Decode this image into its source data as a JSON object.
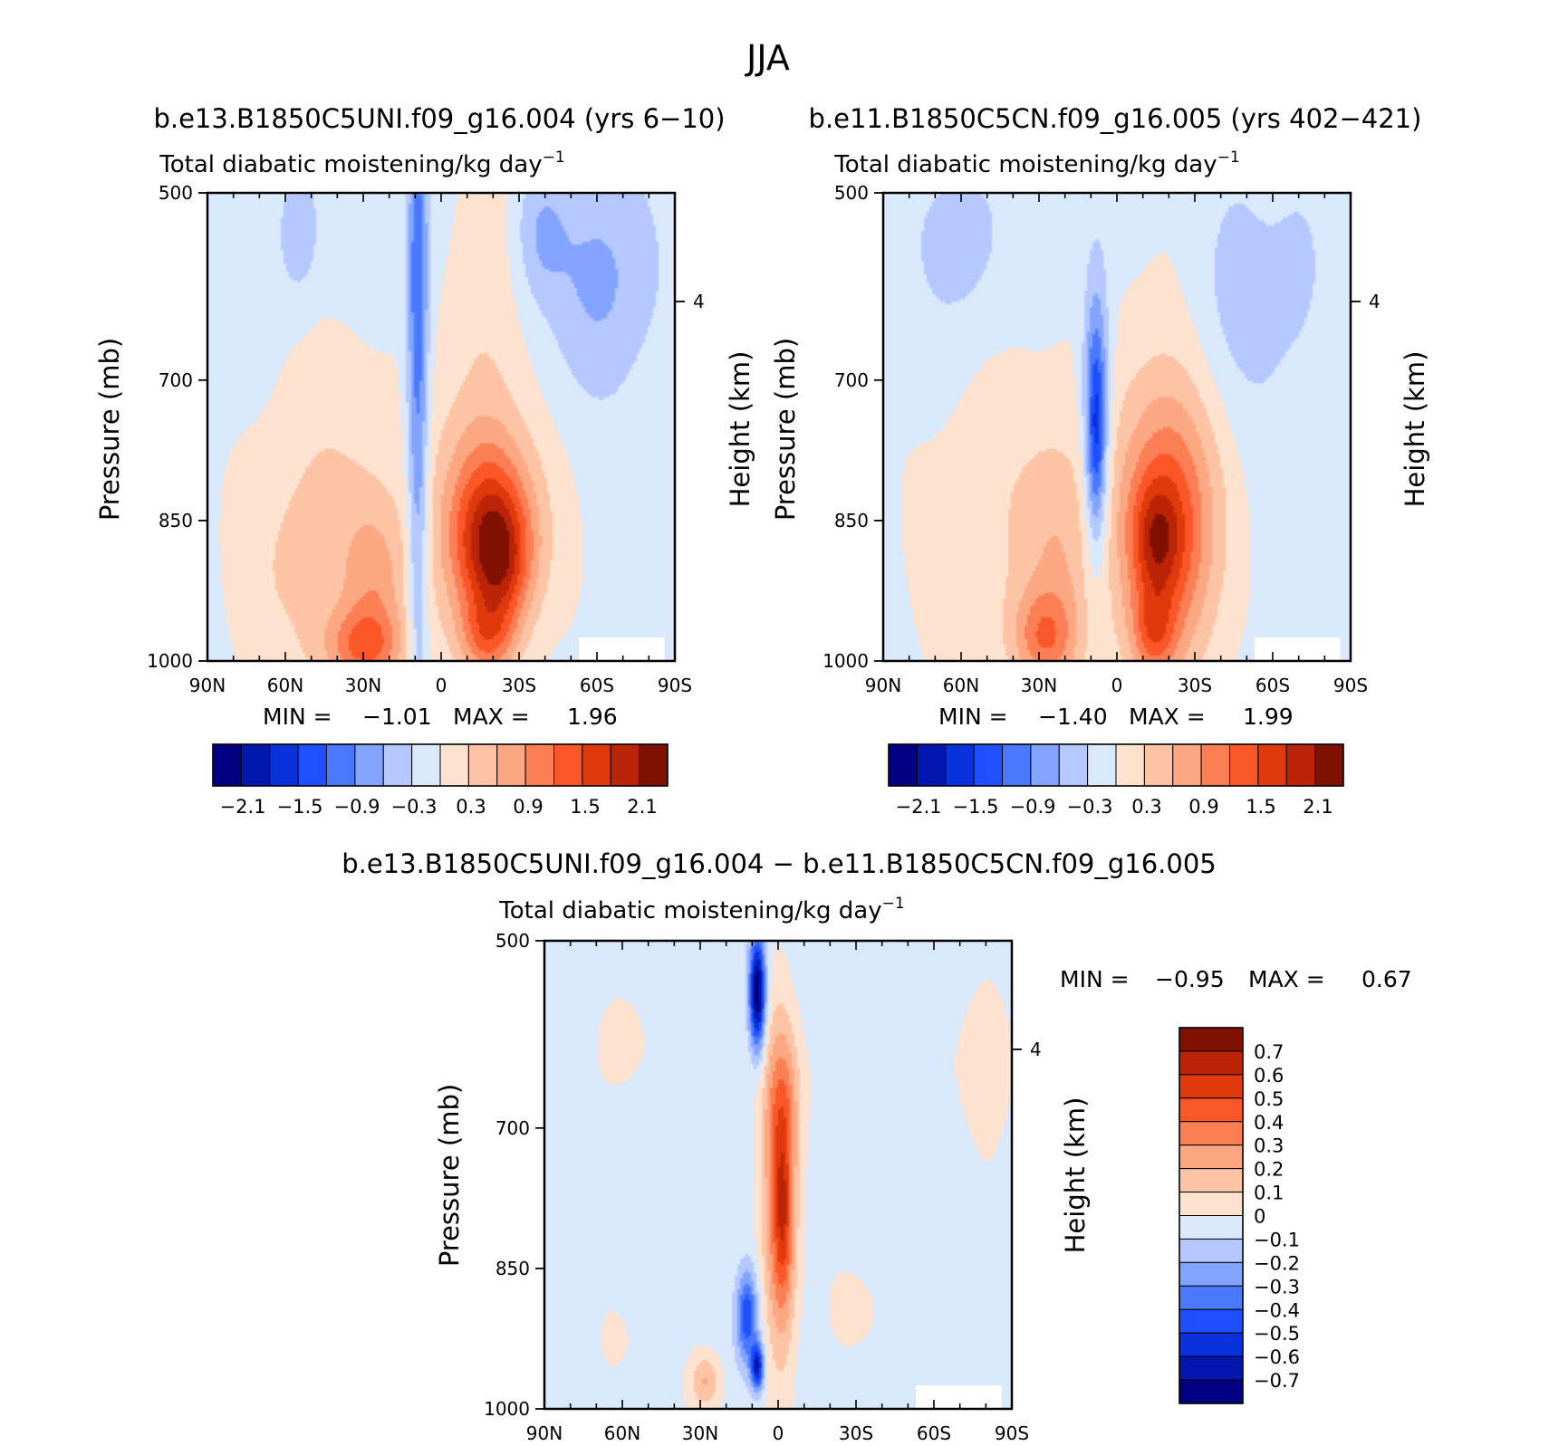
{
  "title": "JJA",
  "chart_data": [
    {
      "type": "heatmap",
      "title": "b.e13.B1850C5UNI.f09_g16.004 (yrs 6−10)",
      "subtitle": "Total diabatic moistening/kg day",
      "subtitle_exp": "−1",
      "ylabel": "Pressure (mb)",
      "y2label": "Height (km)",
      "x_ticks": [
        "90N",
        "60N",
        "30N",
        "0",
        "30S",
        "60S",
        "90S"
      ],
      "x_values": [
        90,
        60,
        30,
        0,
        -30,
        -60,
        -90
      ],
      "y_ticks": [
        "500",
        "700",
        "850",
        "1000"
      ],
      "y_values": [
        500,
        700,
        850,
        1000
      ],
      "y2_ticks": [
        "4"
      ],
      "y2_pressure": [
        616
      ],
      "ylim": [
        1000,
        500
      ],
      "min_label": "MIN =",
      "min": "−1.01",
      "max_label": "MAX =",
      "max": "1.96",
      "colorbar_labels": [
        "−2.1",
        "−1.5",
        "−0.9",
        "−0.3",
        "0.3",
        "0.9",
        "1.5",
        "2.1"
      ],
      "blobs": [
        {
          "lat": 38,
          "p": 845,
          "rlat": 30,
          "rp": 210,
          "v": 0.34
        },
        {
          "lat": 58,
          "p": 900,
          "rlat": 24,
          "rp": 140,
          "v": 0.3
        },
        {
          "lat": 25,
          "p": 920,
          "rlat": 12,
          "rp": 90,
          "v": 0.6
        },
        {
          "lat": 30,
          "p": 985,
          "rlat": 15,
          "rp": 40,
          "v": 0.95
        },
        {
          "lat": -16,
          "p": 655,
          "rlat": 15,
          "rp": 220,
          "v": 0.35
        },
        {
          "lat": -22,
          "p": 860,
          "rlat": 30,
          "rp": 130,
          "v": 0.3
        },
        {
          "lat": -18,
          "p": 870,
          "rlat": 18,
          "rp": 120,
          "v": 0.9
        },
        {
          "lat": -20,
          "p": 870,
          "rlat": 14,
          "rp": 80,
          "v": 0.9
        },
        {
          "lat": -24,
          "p": 900,
          "rlat": 10,
          "rp": 60,
          "v": 0.55
        },
        {
          "lat": -18,
          "p": 975,
          "rlat": 10,
          "rp": 40,
          "v": 0.8
        },
        {
          "lat": 9,
          "p": 745,
          "rlat": 4,
          "rp": 330,
          "v": -0.95
        },
        {
          "lat": 9,
          "p": 560,
          "rlat": 4,
          "rp": 120,
          "v": -0.4
        },
        {
          "lat": 55,
          "p": 545,
          "rlat": 8,
          "rp": 70,
          "v": -0.45
        },
        {
          "lat": -62,
          "p": 590,
          "rlat": 20,
          "rp": 120,
          "v": -0.55
        },
        {
          "lat": -38,
          "p": 545,
          "rlat": 10,
          "rp": 70,
          "v": -0.45
        }
      ]
    },
    {
      "type": "heatmap",
      "title": "b.e11.B1850C5CN.f09_g16.005 (yrs 402−421)",
      "subtitle": "Total diabatic moistening/kg day",
      "subtitle_exp": "−1",
      "ylabel": "Pressure (mb)",
      "y2label": "Height (km)",
      "x_ticks": [
        "90N",
        "60N",
        "30N",
        "0",
        "30S",
        "60S",
        "90S"
      ],
      "x_values": [
        90,
        60,
        30,
        0,
        -30,
        -60,
        -90
      ],
      "y_ticks": [
        "500",
        "700",
        "850",
        "1000"
      ],
      "y_values": [
        500,
        700,
        850,
        1000
      ],
      "y2_ticks": [
        "4"
      ],
      "y2_pressure": [
        616
      ],
      "ylim": [
        1000,
        500
      ],
      "min_label": "MIN =",
      "min": "−1.40",
      "max_label": "MAX =",
      "max": "1.99",
      "colorbar_labels": [
        "−2.1",
        "−1.5",
        "−0.9",
        "−0.3",
        "0.3",
        "0.9",
        "1.5",
        "2.1"
      ],
      "blobs": [
        {
          "lat": 40,
          "p": 860,
          "rlat": 38,
          "rp": 210,
          "v": 0.34
        },
        {
          "lat": 22,
          "p": 890,
          "rlat": 14,
          "rp": 130,
          "v": 0.45
        },
        {
          "lat": 28,
          "p": 975,
          "rlat": 12,
          "rp": 50,
          "v": 0.9
        },
        {
          "lat": -20,
          "p": 810,
          "rlat": 22,
          "rp": 260,
          "v": 0.35
        },
        {
          "lat": -20,
          "p": 860,
          "rlat": 18,
          "rp": 140,
          "v": 1.3
        },
        {
          "lat": -15,
          "p": 870,
          "rlat": 9,
          "rp": 60,
          "v": 0.8
        },
        {
          "lat": -14,
          "p": 970,
          "rlat": 8,
          "rp": 45,
          "v": 0.8
        },
        {
          "lat": 8,
          "p": 740,
          "rlat": 5,
          "rp": 150,
          "v": -1.2
        },
        {
          "lat": 8,
          "p": 760,
          "rlat": 3,
          "rp": 90,
          "v": -0.6
        },
        {
          "lat": -45,
          "p": 620,
          "rlat": 20,
          "rp": 130,
          "v": -0.35
        },
        {
          "lat": 60,
          "p": 560,
          "rlat": 18,
          "rp": 100,
          "v": -0.35
        },
        {
          "lat": -70,
          "p": 580,
          "rlat": 10,
          "rp": 90,
          "v": -0.25
        }
      ]
    },
    {
      "type": "heatmap",
      "title": "b.e13.B1850C5UNI.f09_g16.004 − b.e11.B1850C5CN.f09_g16.005",
      "subtitle": "Total diabatic moistening/kg day",
      "subtitle_exp": "−1",
      "ylabel": "Pressure (mb)",
      "y2label": "Height (km)",
      "x_ticks": [
        "90N",
        "60N",
        "30N",
        "0",
        "30S",
        "60S",
        "90S"
      ],
      "x_values": [
        90,
        60,
        30,
        0,
        -30,
        -60,
        -90
      ],
      "y_ticks": [
        "500",
        "700",
        "850",
        "1000"
      ],
      "y_values": [
        500,
        700,
        850,
        1000
      ],
      "y2_ticks": [
        "4"
      ],
      "y2_pressure": [
        616
      ],
      "ylim": [
        1000,
        500
      ],
      "min_label": "MIN =",
      "min": "−0.95",
      "max_label": "MAX =",
      "max": "0.67",
      "colorbar_labels": [
        "0.7",
        "0.6",
        "0.5",
        "0.4",
        "0.3",
        "0.2",
        "0.1",
        "0",
        "−0.1",
        "−0.2",
        "−0.3",
        "−0.4",
        "−0.5",
        "−0.6",
        "−0.7"
      ],
      "blobs": [
        {
          "lat": -1,
          "p": 770,
          "rlat": 6,
          "rp": 170,
          "v": 0.5
        },
        {
          "lat": -2,
          "p": 800,
          "rlat": 3,
          "rp": 80,
          "v": 0.18
        },
        {
          "lat": -2,
          "p": 680,
          "rlat": 8,
          "rp": 80,
          "v": 0.15
        },
        {
          "lat": 8,
          "p": 555,
          "rlat": 3,
          "rp": 60,
          "v": -0.8
        },
        {
          "lat": 12,
          "p": 900,
          "rlat": 4,
          "rp": 50,
          "v": -0.45
        },
        {
          "lat": 8,
          "p": 955,
          "rlat": 2.5,
          "rp": 25,
          "v": -0.6
        },
        {
          "lat": 28,
          "p": 970,
          "rlat": 6,
          "rp": 30,
          "v": 0.25
        },
        {
          "lat": 58,
          "p": 600,
          "rlat": 10,
          "rp": 60,
          "v": 0.06
        },
        {
          "lat": -78,
          "p": 640,
          "rlat": 14,
          "rp": 130,
          "v": 0.06
        },
        {
          "lat": -30,
          "p": 900,
          "rlat": 10,
          "rp": 40,
          "v": 0.08
        },
        {
          "lat": 60,
          "p": 930,
          "rlat": 12,
          "rp": 50,
          "v": 0.05
        },
        {
          "lat": -47,
          "p": 760,
          "rlat": 5,
          "rp": 60,
          "v": -0.06
        }
      ]
    }
  ],
  "palettes": {
    "total": [
      "#000080",
      "#0018b0",
      "#0a32dc",
      "#1e50ff",
      "#4a78ff",
      "#82a4ff",
      "#b4c8ff",
      "#dae8fc",
      "#fde3cf",
      "#fcc3a4",
      "#fba882",
      "#fc7e54",
      "#fa5628",
      "#e03a0c",
      "#bc2408",
      "#801000"
    ],
    "total_bounds": [
      -2.4,
      -2.1,
      -1.8,
      -1.5,
      -1.2,
      -0.9,
      -0.6,
      -0.3,
      0,
      0.3,
      0.6,
      0.9,
      1.2,
      1.5,
      1.8,
      2.1,
      2.4
    ],
    "diff": [
      "#000080",
      "#0018b0",
      "#0a32dc",
      "#1e50ff",
      "#4a78ff",
      "#82a4ff",
      "#b4c8ff",
      "#dae8fc",
      "#fde3cf",
      "#fcc3a4",
      "#fba882",
      "#fc7e54",
      "#fa5628",
      "#e03a0c",
      "#bc2408",
      "#801000"
    ],
    "diff_bounds": [
      -0.8,
      -0.7,
      -0.6,
      -0.5,
      -0.4,
      -0.3,
      -0.2,
      -0.1,
      0,
      0.1,
      0.2,
      0.3,
      0.4,
      0.5,
      0.6,
      0.7,
      0.8
    ]
  }
}
